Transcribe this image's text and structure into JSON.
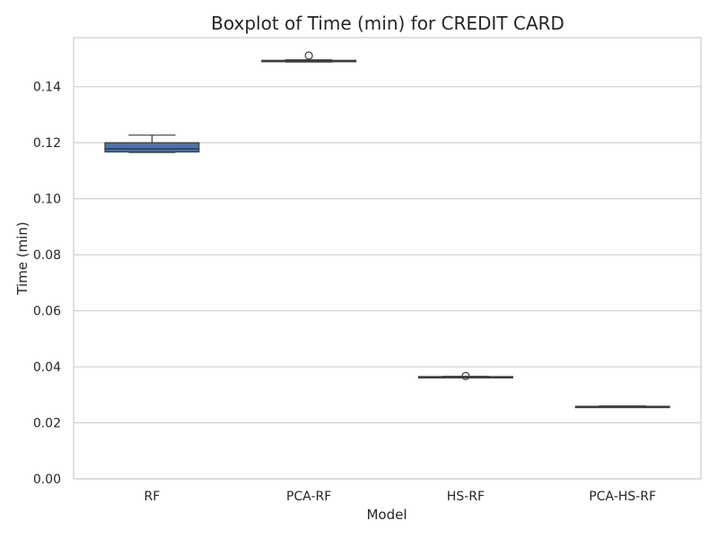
{
  "chart_data": {
    "type": "boxplot",
    "title": "Boxplot of Time (min) for CREDIT CARD",
    "xlabel": "Model",
    "ylabel": "Time (min)",
    "ylim": [
      0,
      0.1575
    ],
    "yticks": [
      0.0,
      0.02,
      0.04,
      0.06,
      0.08,
      0.1,
      0.12,
      0.14
    ],
    "ytick_labels": [
      "0.00",
      "0.02",
      "0.04",
      "0.06",
      "0.08",
      "0.10",
      "0.12",
      "0.14"
    ],
    "grid": true,
    "box_color": "#4c72b0",
    "categories": [
      "RF",
      "PCA-RF",
      "HS-RF",
      "PCA-HS-RF"
    ],
    "boxes": [
      {
        "name": "RF",
        "whisker_low": 0.1165,
        "q1": 0.1167,
        "median": 0.1178,
        "q3": 0.12,
        "whisker_high": 0.1227,
        "fliers": []
      },
      {
        "name": "PCA-RF",
        "whisker_low": 0.1488,
        "q1": 0.1489,
        "median": 0.1491,
        "q3": 0.1494,
        "whisker_high": 0.1496,
        "fliers": [
          0.1511
        ]
      },
      {
        "name": "HS-RF",
        "whisker_low": 0.0362,
        "q1": 0.0363,
        "median": 0.0364,
        "q3": 0.0365,
        "whisker_high": 0.0366,
        "fliers": [
          0.0367
        ]
      },
      {
        "name": "PCA-HS-RF",
        "whisker_low": 0.0256,
        "q1": 0.0257,
        "median": 0.0258,
        "q3": 0.0259,
        "whisker_high": 0.026,
        "fliers": []
      }
    ]
  }
}
